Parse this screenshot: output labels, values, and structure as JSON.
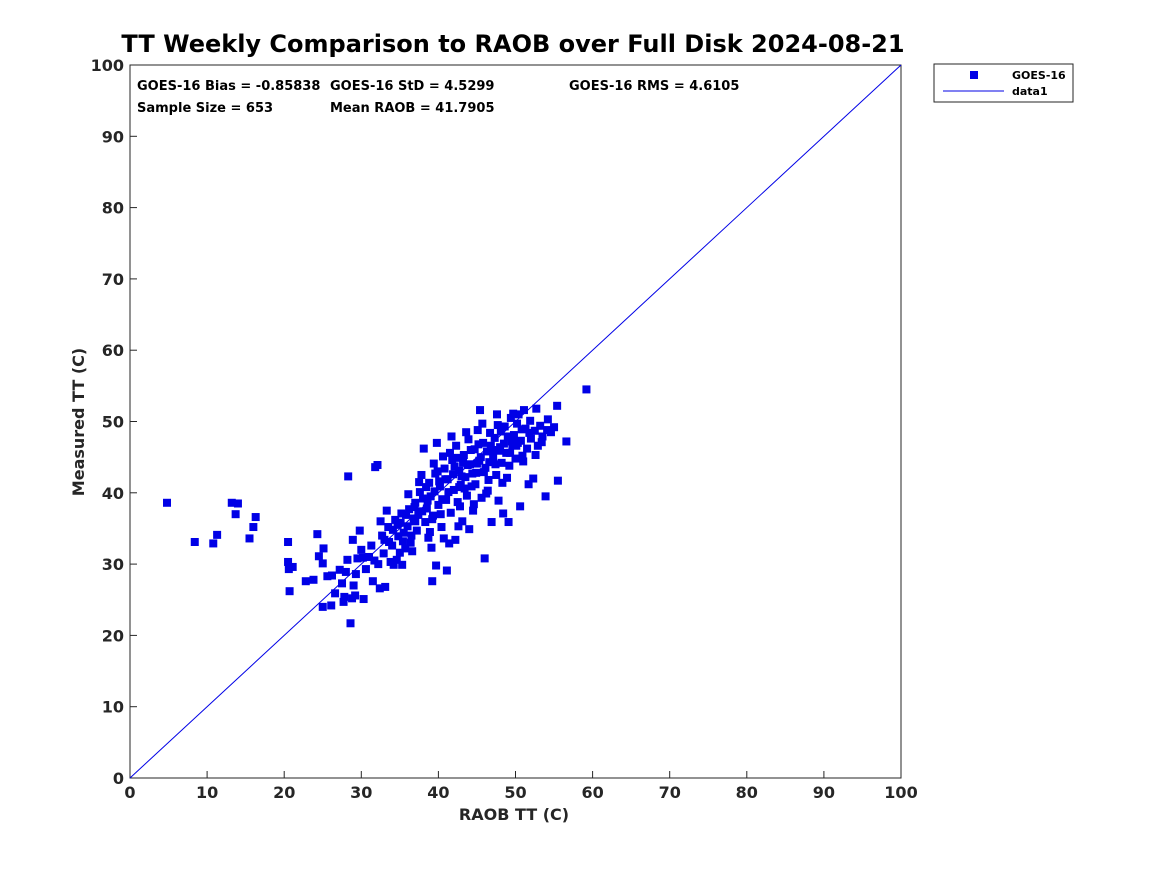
{
  "colors": {
    "series": "#0000e6",
    "axis": "#262626",
    "background": "#ffffff"
  },
  "chart_data": {
    "type": "scatter",
    "title": "TT Weekly Comparison to RAOB over Full Disk 2024-08-21",
    "xlabel": "RAOB TT (C)",
    "ylabel": "Measured TT (C)",
    "xlim": [
      0,
      100
    ],
    "ylim": [
      0,
      100
    ],
    "xticks": [
      "0",
      "10",
      "20",
      "30",
      "40",
      "50",
      "60",
      "70",
      "80",
      "90",
      "100"
    ],
    "yticks": [
      "0",
      "10",
      "20",
      "30",
      "40",
      "50",
      "60",
      "70",
      "80",
      "90",
      "100"
    ],
    "grid": false,
    "legend": {
      "position": "top-right outside",
      "entries": [
        "GOES-16",
        "data1"
      ]
    },
    "stats": {
      "bias": "GOES-16 Bias = -0.85838",
      "std": "GOES-16 StD = 4.5299",
      "rms": "GOES-16 RMS = 4.6105",
      "sample_size": "Sample Size = 653",
      "mean_raob": "Mean RAOB = 41.7905"
    },
    "series": [
      {
        "name": "GOES-16",
        "marker": "square",
        "note": "653 samples; visible points transcribed, dense core approximated",
        "points": [
          [
            4.8,
            38.6
          ],
          [
            8.4,
            33.1
          ],
          [
            10.8,
            32.9
          ],
          [
            11.3,
            34.1
          ],
          [
            13.2,
            38.6
          ],
          [
            13.7,
            37.0
          ],
          [
            14.0,
            38.5
          ],
          [
            15.5,
            33.6
          ],
          [
            16.0,
            35.2
          ],
          [
            16.3,
            36.6
          ],
          [
            20.5,
            33.1
          ],
          [
            20.5,
            30.3
          ],
          [
            20.6,
            29.3
          ],
          [
            20.7,
            26.2
          ],
          [
            21.1,
            29.6
          ],
          [
            22.8,
            27.6
          ],
          [
            23.8,
            27.8
          ],
          [
            24.3,
            34.2
          ],
          [
            24.5,
            31.1
          ],
          [
            25.0,
            30.1
          ],
          [
            25.1,
            32.2
          ],
          [
            25.0,
            24.0
          ],
          [
            25.6,
            28.3
          ],
          [
            26.1,
            24.2
          ],
          [
            26.2,
            28.4
          ],
          [
            26.6,
            25.9
          ],
          [
            27.2,
            29.2
          ],
          [
            27.5,
            27.3
          ],
          [
            27.7,
            24.7
          ],
          [
            27.8,
            25.4
          ],
          [
            28.0,
            28.9
          ],
          [
            28.2,
            30.6
          ],
          [
            28.3,
            42.3
          ],
          [
            28.6,
            21.7
          ],
          [
            28.8,
            25.2
          ],
          [
            28.9,
            33.4
          ],
          [
            29.0,
            27.0
          ],
          [
            29.2,
            25.6
          ],
          [
            29.3,
            28.6
          ],
          [
            29.5,
            30.8
          ],
          [
            29.8,
            34.7
          ],
          [
            30.0,
            32.0
          ],
          [
            30.2,
            30.9
          ],
          [
            30.3,
            25.1
          ],
          [
            30.6,
            29.3
          ],
          [
            31.0,
            31.0
          ],
          [
            31.3,
            32.6
          ],
          [
            31.5,
            27.6
          ],
          [
            31.7,
            30.5
          ],
          [
            31.8,
            43.6
          ],
          [
            32.1,
            43.9
          ],
          [
            32.2,
            30.0
          ],
          [
            32.4,
            26.6
          ],
          [
            32.5,
            36.0
          ],
          [
            32.7,
            34.0
          ],
          [
            32.9,
            31.5
          ],
          [
            33.0,
            33.4
          ],
          [
            33.1,
            26.8
          ],
          [
            33.3,
            37.5
          ],
          [
            33.5,
            35.2
          ],
          [
            33.8,
            30.3
          ],
          [
            34.0,
            32.6
          ],
          [
            34.2,
            29.9
          ],
          [
            34.4,
            36.2
          ],
          [
            34.6,
            30.6
          ],
          [
            34.8,
            33.9
          ],
          [
            35.0,
            31.6
          ],
          [
            35.2,
            37.1
          ],
          [
            35.3,
            29.9
          ],
          [
            35.5,
            34.4
          ],
          [
            35.7,
            32.2
          ],
          [
            36.0,
            35.3
          ],
          [
            36.2,
            37.7
          ],
          [
            36.4,
            33.0
          ],
          [
            36.6,
            31.8
          ],
          [
            36.8,
            36.4
          ],
          [
            37.0,
            38.6
          ],
          [
            37.2,
            34.7
          ],
          [
            37.4,
            36.9
          ],
          [
            37.6,
            40.1
          ],
          [
            37.8,
            42.5
          ],
          [
            38.0,
            39.2
          ],
          [
            38.1,
            46.2
          ],
          [
            38.3,
            35.9
          ],
          [
            38.5,
            37.8
          ],
          [
            38.7,
            33.7
          ],
          [
            38.8,
            41.4
          ],
          [
            39.0,
            39.5
          ],
          [
            39.1,
            32.3
          ],
          [
            39.2,
            27.6
          ],
          [
            39.3,
            36.8
          ],
          [
            39.6,
            42.7
          ],
          [
            39.7,
            29.8
          ],
          [
            39.8,
            47.0
          ],
          [
            40.0,
            38.3
          ],
          [
            40.2,
            40.9
          ],
          [
            40.4,
            35.2
          ],
          [
            40.6,
            45.1
          ],
          [
            40.8,
            43.4
          ],
          [
            41.0,
            39.0
          ],
          [
            41.1,
            29.1
          ],
          [
            41.2,
            41.9
          ],
          [
            41.4,
            32.9
          ],
          [
            41.6,
            37.2
          ],
          [
            41.8,
            44.6
          ],
          [
            42.0,
            40.4
          ],
          [
            42.2,
            33.4
          ],
          [
            42.3,
            46.6
          ],
          [
            42.5,
            38.7
          ],
          [
            42.7,
            43.1
          ],
          [
            42.9,
            41.1
          ],
          [
            43.1,
            36.0
          ],
          [
            43.3,
            45.3
          ],
          [
            43.5,
            42.2
          ],
          [
            43.7,
            39.6
          ],
          [
            43.9,
            47.5
          ],
          [
            44.0,
            34.9
          ],
          [
            44.1,
            44.0
          ],
          [
            44.3,
            40.9
          ],
          [
            44.5,
            37.5
          ],
          [
            44.7,
            46.1
          ],
          [
            44.9,
            42.8
          ],
          [
            45.1,
            48.8
          ],
          [
            45.3,
            44.5
          ],
          [
            45.4,
            51.6
          ],
          [
            45.6,
            39.3
          ],
          [
            45.8,
            47.0
          ],
          [
            46.0,
            30.8
          ],
          [
            46.1,
            43.5
          ],
          [
            46.3,
            45.8
          ],
          [
            46.5,
            41.8
          ],
          [
            46.7,
            48.4
          ],
          [
            46.9,
            35.9
          ],
          [
            47.1,
            44.9
          ],
          [
            47.3,
            47.7
          ],
          [
            47.5,
            42.5
          ],
          [
            47.6,
            51.0
          ],
          [
            47.8,
            38.9
          ],
          [
            48.0,
            46.4
          ],
          [
            48.2,
            44.2
          ],
          [
            48.4,
            37.1
          ],
          [
            48.6,
            49.3
          ],
          [
            48.8,
            45.6
          ],
          [
            49.0,
            47.9
          ],
          [
            49.1,
            35.9
          ],
          [
            49.2,
            43.8
          ],
          [
            49.4,
            50.5
          ],
          [
            49.6,
            46.7
          ],
          [
            49.8,
            48.1
          ],
          [
            50.0,
            44.8
          ],
          [
            50.2,
            49.7
          ],
          [
            50.4,
            51.0
          ],
          [
            50.6,
            38.1
          ],
          [
            50.7,
            47.3
          ],
          [
            50.9,
            45.2
          ],
          [
            51.1,
            51.6
          ],
          [
            51.3,
            49.0
          ],
          [
            51.5,
            46.2
          ],
          [
            51.7,
            41.2
          ],
          [
            51.9,
            50.1
          ],
          [
            52.0,
            47.6
          ],
          [
            52.3,
            42.0
          ],
          [
            52.5,
            48.7
          ],
          [
            52.7,
            51.8
          ],
          [
            52.9,
            46.6
          ],
          [
            53.2,
            49.4
          ],
          [
            53.5,
            47.9
          ],
          [
            53.9,
            39.5
          ],
          [
            54.2,
            50.3
          ],
          [
            54.6,
            48.5
          ],
          [
            55.0,
            49.2
          ],
          [
            55.4,
            52.2
          ],
          [
            55.5,
            41.7
          ],
          [
            56.6,
            47.2
          ],
          [
            59.2,
            54.5
          ],
          [
            36.1,
            39.8
          ],
          [
            37.0,
            36.0
          ],
          [
            38.4,
            40.8
          ],
          [
            39.4,
            44.1
          ],
          [
            40.3,
            37.0
          ],
          [
            40.9,
            41.9
          ],
          [
            41.5,
            45.6
          ],
          [
            42.1,
            43.7
          ],
          [
            42.8,
            38.1
          ],
          [
            43.4,
            40.6
          ],
          [
            44.2,
            46.0
          ],
          [
            44.8,
            41.2
          ],
          [
            45.5,
            45.0
          ],
          [
            46.2,
            39.9
          ],
          [
            46.8,
            46.6
          ],
          [
            47.4,
            44.0
          ],
          [
            48.1,
            48.6
          ],
          [
            48.9,
            42.1
          ],
          [
            49.5,
            47.2
          ],
          [
            50.3,
            47.0
          ],
          [
            51.0,
            44.4
          ],
          [
            51.8,
            48.4
          ],
          [
            52.6,
            45.3
          ],
          [
            53.4,
            47.1
          ],
          [
            54.1,
            48.8
          ],
          [
            37.5,
            41.5
          ],
          [
            39.9,
            43.0
          ],
          [
            41.7,
            47.9
          ],
          [
            43.6,
            48.5
          ],
          [
            45.7,
            49.7
          ],
          [
            47.7,
            49.5
          ],
          [
            49.7,
            51.1
          ],
          [
            44.6,
            38.4
          ],
          [
            46.4,
            40.3
          ],
          [
            48.3,
            41.4
          ],
          [
            42.6,
            35.3
          ],
          [
            40.7,
            33.6
          ],
          [
            38.9,
            34.5
          ],
          [
            36.5,
            34.0
          ],
          [
            35.1,
            35.8
          ],
          [
            34.1,
            34.8
          ],
          [
            33.6,
            33.1
          ],
          [
            42.4,
            44.9
          ],
          [
            43.0,
            42.3
          ],
          [
            43.8,
            43.9
          ],
          [
            44.4,
            42.7
          ],
          [
            45.0,
            44.1
          ],
          [
            45.2,
            46.8
          ],
          [
            45.9,
            42.9
          ],
          [
            46.6,
            44.3
          ],
          [
            47.0,
            46.0
          ],
          [
            47.9,
            45.9
          ],
          [
            48.5,
            46.9
          ],
          [
            49.3,
            45.6
          ],
          [
            50.1,
            46.6
          ],
          [
            50.8,
            48.9
          ],
          [
            39.5,
            40.2
          ],
          [
            40.1,
            41.6
          ],
          [
            40.5,
            39.1
          ],
          [
            41.3,
            40.1
          ],
          [
            41.9,
            42.6
          ],
          [
            42.7,
            40.8
          ],
          [
            43.2,
            44.2
          ],
          [
            37.9,
            37.4
          ],
          [
            38.6,
            38.9
          ],
          [
            39.2,
            36.3
          ],
          [
            36.9,
            38.0
          ],
          [
            35.8,
            36.9
          ],
          [
            35.4,
            33.2
          ],
          [
            34.7,
            35.5
          ]
        ]
      },
      {
        "name": "data1",
        "type": "line",
        "x": [
          0,
          100
        ],
        "y": [
          0,
          100
        ]
      }
    ]
  }
}
